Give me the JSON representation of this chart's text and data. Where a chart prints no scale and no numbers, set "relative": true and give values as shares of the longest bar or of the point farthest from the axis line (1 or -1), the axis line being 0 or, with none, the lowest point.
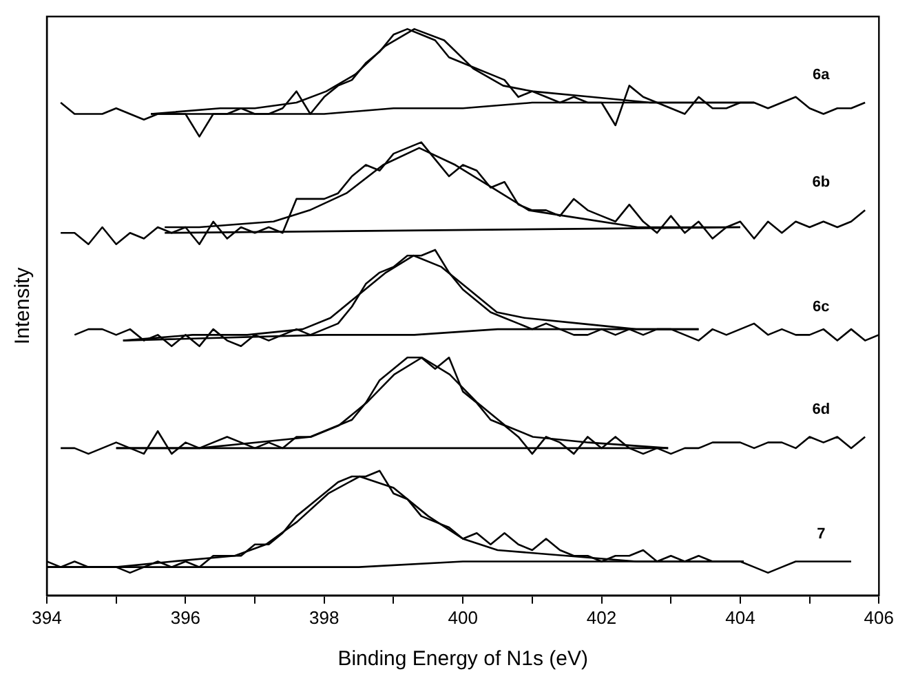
{
  "chart_data": {
    "type": "line",
    "xlabel": "Binding Energy of N1s (eV)",
    "ylabel": "Intensity",
    "relative": true,
    "marker": "none",
    "line_style": "solid",
    "grid": false,
    "legend": false,
    "xlim": [
      394,
      406
    ],
    "xticks": [
      394,
      {
        "value": 395,
        "label": null
      },
      396,
      {
        "value": 397,
        "label": null
      },
      398,
      {
        "value": 399,
        "label": null
      },
      400,
      {
        "value": 401,
        "label": null
      },
      402,
      {
        "value": 403,
        "label": null
      },
      404,
      {
        "value": 405,
        "label": null
      },
      406
    ],
    "annotations": [
      "6a",
      "6b",
      "6c",
      "6d",
      "7"
    ],
    "series": [
      {
        "color": "#000000",
        "x": [
          394.2,
          394.4,
          394.6,
          394.8,
          395.0,
          395.2,
          395.4,
          395.6,
          395.8,
          396.0,
          396.2,
          396.4,
          396.6,
          396.8,
          397.0,
          397.2,
          397.4,
          397.6,
          397.8,
          398.0,
          398.2,
          398.4,
          398.6,
          398.8,
          399.0,
          399.2,
          399.4,
          399.6,
          399.8,
          400.0,
          400.2,
          400.4,
          400.6,
          400.8,
          401.0,
          401.2,
          401.4,
          401.6,
          401.8,
          402.0,
          402.2,
          402.4,
          402.6,
          402.8,
          403.0,
          403.2,
          403.4,
          403.6,
          403.8,
          404.0,
          404.2,
          404.4,
          404.6,
          404.8,
          405.0,
          405.2,
          405.4,
          405.6,
          405.8
        ],
        "values": [
          0.87,
          0.85,
          0.85,
          0.85,
          0.86,
          0.85,
          0.84,
          0.85,
          0.85,
          0.85,
          0.81,
          0.85,
          0.85,
          0.86,
          0.85,
          0.85,
          0.86,
          0.89,
          0.85,
          0.88,
          0.9,
          0.91,
          0.94,
          0.96,
          0.99,
          1.0,
          0.99,
          0.98,
          0.95,
          0.94,
          0.93,
          0.92,
          0.91,
          0.88,
          0.89,
          0.88,
          0.87,
          0.88,
          0.87,
          0.87,
          0.83,
          0.9,
          0.88,
          0.87,
          0.86,
          0.85,
          0.88,
          0.86,
          0.86,
          0.87,
          0.87,
          0.86,
          0.87,
          0.88,
          0.86,
          0.85,
          0.86,
          0.86,
          0.87
        ]
      },
      {
        "color": "#000000",
        "x": [
          395.5,
          396.5,
          397,
          397.6,
          398.03,
          398.45,
          398.88,
          399.3,
          399.73,
          400.15,
          400.58,
          401,
          401.85,
          402.7,
          404.2
        ],
        "values": [
          0.85,
          0.86,
          0.86,
          0.87,
          0.89,
          0.92,
          0.97,
          1.0,
          0.98,
          0.93,
          0.9,
          0.89,
          0.88,
          0.87,
          0.87
        ]
      },
      {
        "color": "#000000",
        "x": [
          395.5,
          398,
          399,
          400,
          401,
          404.2
        ],
        "values": [
          0.85,
          0.85,
          0.86,
          0.86,
          0.87,
          0.87
        ]
      },
      {
        "color": "#000000",
        "x": [
          394.2,
          394.4,
          394.6,
          394.8,
          395.0,
          395.2,
          395.4,
          395.6,
          395.8,
          396.0,
          396.2,
          396.4,
          396.6,
          396.8,
          397.0,
          397.2,
          397.4,
          397.6,
          397.8,
          398.0,
          398.2,
          398.4,
          398.6,
          398.8,
          399.0,
          399.2,
          399.4,
          399.6,
          399.8,
          400.0,
          400.2,
          400.4,
          400.6,
          400.8,
          401.0,
          401.2,
          401.4,
          401.6,
          401.8,
          402.0,
          402.2,
          402.4,
          402.6,
          402.8,
          403.0,
          403.2,
          403.4,
          403.6,
          403.8,
          404.0,
          404.2,
          404.4,
          404.6,
          404.8,
          405.0,
          405.2,
          405.4,
          405.6,
          405.8
        ],
        "values": [
          0.64,
          0.64,
          0.62,
          0.65,
          0.62,
          0.64,
          0.63,
          0.65,
          0.64,
          0.65,
          0.62,
          0.66,
          0.63,
          0.65,
          0.64,
          0.65,
          0.64,
          0.7,
          0.7,
          0.7,
          0.71,
          0.74,
          0.76,
          0.75,
          0.78,
          0.79,
          0.8,
          0.77,
          0.74,
          0.76,
          0.75,
          0.72,
          0.73,
          0.69,
          0.68,
          0.68,
          0.67,
          0.7,
          0.68,
          0.67,
          0.66,
          0.69,
          0.66,
          0.64,
          0.67,
          0.64,
          0.66,
          0.63,
          0.65,
          0.66,
          0.63,
          0.66,
          0.64,
          0.66,
          0.65,
          0.66,
          0.65,
          0.66,
          0.68
        ]
      },
      {
        "color": "#000000",
        "x": [
          395.7,
          396.2,
          397.27,
          397.79,
          398.32,
          398.85,
          399.37,
          399.89,
          400.42,
          400.95,
          401.47,
          402.52,
          404
        ],
        "values": [
          0.65,
          0.65,
          0.66,
          0.68,
          0.71,
          0.76,
          0.79,
          0.76,
          0.72,
          0.68,
          0.67,
          0.65,
          0.65
        ]
      },
      {
        "color": "#000000",
        "x": [
          395.7,
          404
        ],
        "values": [
          0.64,
          0.65
        ]
      },
      {
        "color": "#000000",
        "x": [
          394.4,
          394.6,
          394.8,
          395.0,
          395.2,
          395.4,
          395.6,
          395.8,
          396.0,
          396.2,
          396.4,
          396.6,
          396.8,
          397.0,
          397.2,
          397.4,
          397.6,
          397.8,
          398.0,
          398.2,
          398.4,
          398.6,
          398.8,
          399.0,
          399.2,
          399.4,
          399.6,
          399.8,
          400.0,
          400.2,
          400.4,
          400.6,
          400.8,
          401.0,
          401.2,
          401.4,
          401.6,
          401.8,
          402.0,
          402.2,
          402.4,
          402.6,
          402.8,
          403.0,
          403.2,
          403.4,
          403.6,
          403.8,
          404.0,
          404.2,
          404.4,
          404.6,
          404.8,
          405.0,
          405.2,
          405.4,
          405.6,
          405.8,
          406.0
        ],
        "values": [
          0.46,
          0.47,
          0.47,
          0.46,
          0.47,
          0.45,
          0.46,
          0.44,
          0.46,
          0.44,
          0.47,
          0.45,
          0.44,
          0.46,
          0.45,
          0.46,
          0.47,
          0.46,
          0.47,
          0.48,
          0.51,
          0.55,
          0.57,
          0.58,
          0.6,
          0.6,
          0.61,
          0.57,
          0.54,
          0.52,
          0.5,
          0.49,
          0.48,
          0.47,
          0.48,
          0.47,
          0.46,
          0.46,
          0.47,
          0.46,
          0.47,
          0.46,
          0.47,
          0.47,
          0.46,
          0.45,
          0.47,
          0.46,
          0.47,
          0.48,
          0.46,
          0.47,
          0.46,
          0.46,
          0.47,
          0.45,
          0.47,
          0.45,
          0.46
        ]
      },
      {
        "color": "#000000",
        "x": [
          395.1,
          396.1,
          396.89,
          397.69,
          398.09,
          398.49,
          398.89,
          399.29,
          399.69,
          400.09,
          400.49,
          400.89,
          401.69,
          402.5,
          403.4
        ],
        "values": [
          0.45,
          0.46,
          0.46,
          0.47,
          0.49,
          0.53,
          0.57,
          0.6,
          0.58,
          0.54,
          0.5,
          0.49,
          0.48,
          0.47,
          0.47
        ]
      },
      {
        "color": "#000000",
        "x": [
          395.1,
          398,
          399.3,
          400.5,
          403.4
        ],
        "values": [
          0.45,
          0.46,
          0.46,
          0.47,
          0.47
        ]
      },
      {
        "color": "#000000",
        "x": [
          394.2,
          394.4,
          394.6,
          394.8,
          395.0,
          395.2,
          395.4,
          395.6,
          395.8,
          396.0,
          396.2,
          396.4,
          396.6,
          396.8,
          397.0,
          397.2,
          397.4,
          397.6,
          397.8,
          398.0,
          398.2,
          398.4,
          398.6,
          398.8,
          399.0,
          399.2,
          399.4,
          399.6,
          399.8,
          400.0,
          400.2,
          400.4,
          400.6,
          400.8,
          401.0,
          401.2,
          401.4,
          401.6,
          401.8,
          402.0,
          402.2,
          402.4,
          402.6,
          402.8,
          403.0,
          403.2,
          403.4,
          403.6,
          403.8,
          404.0,
          404.2,
          404.4,
          404.6,
          404.8,
          405.0,
          405.2,
          405.4,
          405.6,
          405.8
        ],
        "values": [
          0.26,
          0.26,
          0.25,
          0.26,
          0.27,
          0.26,
          0.25,
          0.29,
          0.25,
          0.27,
          0.26,
          0.27,
          0.28,
          0.27,
          0.26,
          0.27,
          0.26,
          0.28,
          0.28,
          0.29,
          0.3,
          0.31,
          0.34,
          0.38,
          0.4,
          0.42,
          0.42,
          0.4,
          0.42,
          0.36,
          0.34,
          0.31,
          0.3,
          0.28,
          0.25,
          0.28,
          0.27,
          0.25,
          0.28,
          0.26,
          0.28,
          0.26,
          0.25,
          0.26,
          0.25,
          0.26,
          0.26,
          0.27,
          0.27,
          0.27,
          0.26,
          0.27,
          0.27,
          0.26,
          0.28,
          0.27,
          0.28,
          0.26,
          0.28
        ]
      },
      {
        "color": "#000000",
        "x": [
          395.0,
          396.2,
          397.01,
          397.81,
          398.21,
          398.61,
          399.01,
          399.41,
          399.81,
          400.21,
          400.61,
          401.01,
          401.81,
          402.96
        ],
        "values": [
          0.26,
          0.26,
          0.27,
          0.28,
          0.3,
          0.34,
          0.39,
          0.42,
          0.39,
          0.34,
          0.3,
          0.28,
          0.27,
          0.26
        ]
      },
      {
        "color": "#000000",
        "x": [
          395.0,
          402.96
        ],
        "values": [
          0.26,
          0.26
        ]
      },
      {
        "color": "#000000",
        "x": [
          394.0,
          394.2,
          394.4,
          394.6,
          394.8,
          395.0,
          395.2,
          395.4,
          395.6,
          395.8,
          396.0,
          396.2,
          396.4,
          396.6,
          396.8,
          397.0,
          397.2,
          397.4,
          397.6,
          397.8,
          398.0,
          398.2,
          398.4,
          398.6,
          398.8,
          399.0,
          399.2,
          399.4,
          399.6,
          399.8,
          400.0,
          400.2,
          400.4,
          400.6,
          400.8,
          401.0,
          401.2,
          401.4,
          401.6,
          401.8,
          402.0,
          402.2,
          402.4,
          402.6,
          402.8,
          403.0,
          403.2,
          403.4,
          403.6,
          403.8,
          404.0,
          404.2,
          404.4,
          404.6,
          404.8,
          405.0,
          405.2,
          405.4,
          405.6
        ],
        "values": [
          0.06,
          0.05,
          0.06,
          0.05,
          0.05,
          0.05,
          0.04,
          0.05,
          0.06,
          0.05,
          0.06,
          0.05,
          0.07,
          0.07,
          0.07,
          0.09,
          0.09,
          0.11,
          0.14,
          0.16,
          0.18,
          0.2,
          0.21,
          0.21,
          0.22,
          0.18,
          0.17,
          0.14,
          0.13,
          0.12,
          0.1,
          0.11,
          0.09,
          0.11,
          0.09,
          0.08,
          0.1,
          0.08,
          0.07,
          0.07,
          0.06,
          0.07,
          0.07,
          0.08,
          0.06,
          0.07,
          0.06,
          0.07,
          0.06,
          0.06,
          0.06,
          0.05,
          0.04,
          0.05,
          0.06,
          0.06,
          0.06,
          0.06,
          0.06
        ]
      },
      {
        "color": "#000000",
        "x": [
          394.0,
          395.0,
          395.81,
          396.71,
          397.16,
          397.61,
          398.06,
          398.51,
          399.0,
          399.5,
          400.0,
          400.5,
          401.5,
          402.5,
          404.05
        ],
        "values": [
          0.05,
          0.05,
          0.06,
          0.07,
          0.09,
          0.13,
          0.18,
          0.21,
          0.19,
          0.14,
          0.1,
          0.08,
          0.07,
          0.06,
          0.06
        ]
      },
      {
        "color": "#000000",
        "x": [
          394.0,
          397,
          398.5,
          400,
          404.05
        ],
        "values": [
          0.05,
          0.05,
          0.05,
          0.06,
          0.06
        ]
      }
    ]
  }
}
